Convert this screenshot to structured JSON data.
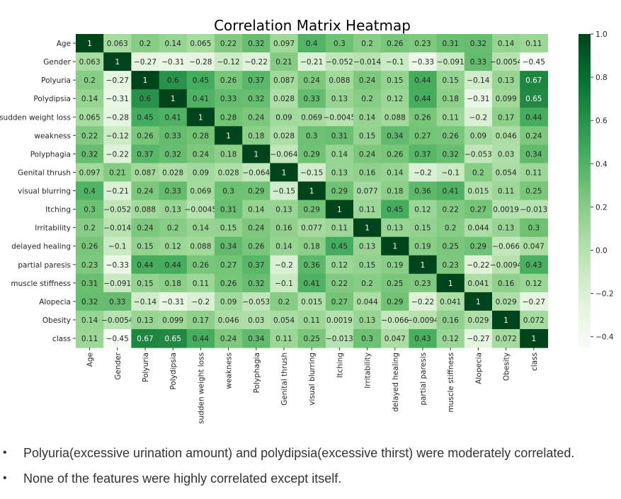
{
  "chart_data": {
    "type": "heatmap",
    "title": "Correlation Matrix Heatmap",
    "colormap": "Greens",
    "vmin": -0.45,
    "vmax": 1.0,
    "colorbar_ticks": [
      1.0,
      0.8,
      0.6,
      0.4,
      0.2,
      0.0,
      -0.2,
      -0.4
    ],
    "colorbar_tick_labels": [
      "1.0",
      "0.8",
      "0.6",
      "0.4",
      "0.2",
      "0.0",
      "−0.2",
      "−0.4"
    ],
    "labels": [
      "Age",
      "Gender",
      "Polyuria",
      "Polydipsia",
      "sudden weight loss",
      "weakness",
      "Polyphagia",
      "Genital thrush",
      "visual blurring",
      "Itching",
      "Irritability",
      "delayed healing",
      "partial paresis",
      "muscle stiffness",
      "Alopecia",
      "Obesity",
      "class"
    ],
    "matrix": [
      [
        "1",
        "0.063",
        "0.2",
        "0.14",
        "0.065",
        "0.22",
        "0.32",
        "0.097",
        "0.4",
        "0.3",
        "0.2",
        "0.26",
        "0.23",
        "0.31",
        "0.32",
        "0.14",
        "0.11"
      ],
      [
        "0.063",
        "1",
        "-0.27",
        "-0.31",
        "-0.28",
        "-0.12",
        "-0.22",
        "0.21",
        "-0.21",
        "-0.052",
        "-0.014",
        "-0.1",
        "-0.33",
        "-0.091",
        "0.33",
        "-0.0054",
        "-0.45"
      ],
      [
        "0.2",
        "-0.27",
        "1",
        "0.6",
        "0.45",
        "0.26",
        "0.37",
        "0.087",
        "0.24",
        "0.088",
        "0.24",
        "0.15",
        "0.44",
        "0.15",
        "-0.14",
        "0.13",
        "0.67"
      ],
      [
        "0.14",
        "-0.31",
        "0.6",
        "1",
        "0.41",
        "0.33",
        "0.32",
        "0.028",
        "0.33",
        "0.13",
        "0.2",
        "0.12",
        "0.44",
        "0.18",
        "-0.31",
        "0.099",
        "0.65"
      ],
      [
        "0.065",
        "-0.28",
        "0.45",
        "0.41",
        "1",
        "0.28",
        "0.24",
        "0.09",
        "0.069",
        "-0.0045",
        "0.14",
        "0.088",
        "0.26",
        "0.11",
        "-0.2",
        "0.17",
        "0.44"
      ],
      [
        "0.22",
        "-0.12",
        "0.26",
        "0.33",
        "0.28",
        "1",
        "0.18",
        "0.028",
        "0.3",
        "0.31",
        "0.15",
        "0.34",
        "0.27",
        "0.26",
        "0.09",
        "0.046",
        "0.24"
      ],
      [
        "0.32",
        "-0.22",
        "0.37",
        "0.32",
        "0.24",
        "0.18",
        "1",
        "-0.064",
        "0.29",
        "0.14",
        "0.24",
        "0.26",
        "0.37",
        "0.32",
        "-0.053",
        "0.03",
        "0.34"
      ],
      [
        "0.097",
        "0.21",
        "0.087",
        "0.028",
        "0.09",
        "0.028",
        "-0.064",
        "1",
        "-0.15",
        "0.13",
        "0.16",
        "0.14",
        "-0.2",
        "-0.1",
        "0.2",
        "0.054",
        "0.11"
      ],
      [
        "0.4",
        "-0.21",
        "0.24",
        "0.33",
        "0.069",
        "0.3",
        "0.29",
        "-0.15",
        "1",
        "0.29",
        "0.077",
        "0.18",
        "0.36",
        "0.41",
        "0.015",
        "0.11",
        "0.25"
      ],
      [
        "0.3",
        "-0.052",
        "0.088",
        "0.13",
        "-0.0045",
        "0.31",
        "0.14",
        "0.13",
        "0.29",
        "1",
        "0.11",
        "0.45",
        "0.12",
        "0.22",
        "0.27",
        "0.0019",
        "-0.013"
      ],
      [
        "0.2",
        "-0.014",
        "0.24",
        "0.2",
        "0.14",
        "0.15",
        "0.24",
        "0.16",
        "0.077",
        "0.11",
        "1",
        "0.13",
        "0.15",
        "0.2",
        "0.044",
        "0.13",
        "0.3"
      ],
      [
        "0.26",
        "-0.1",
        "0.15",
        "0.12",
        "0.088",
        "0.34",
        "0.26",
        "0.14",
        "0.18",
        "0.45",
        "0.13",
        "1",
        "0.19",
        "0.25",
        "0.29",
        "-0.066",
        "0.047"
      ],
      [
        "0.23",
        "-0.33",
        "0.44",
        "0.44",
        "0.26",
        "0.27",
        "0.37",
        "-0.2",
        "0.36",
        "0.12",
        "0.15",
        "0.19",
        "1",
        "0.23",
        "-0.22",
        "-0.0094",
        "0.43"
      ],
      [
        "0.31",
        "-0.091",
        "0.15",
        "0.18",
        "0.11",
        "0.26",
        "0.32",
        "-0.1",
        "0.41",
        "0.22",
        "0.2",
        "0.25",
        "0.23",
        "1",
        "0.041",
        "0.16",
        "0.12"
      ],
      [
        "0.32",
        "0.33",
        "-0.14",
        "-0.31",
        "-0.2",
        "0.09",
        "-0.053",
        "0.2",
        "0.015",
        "0.27",
        "0.044",
        "0.29",
        "-0.22",
        "0.041",
        "1",
        "0.029",
        "-0.27"
      ],
      [
        "0.14",
        "-0.0054",
        "0.13",
        "0.099",
        "0.17",
        "0.046",
        "0.03",
        "0.054",
        "0.11",
        "0.0019",
        "0.13",
        "-0.066",
        "-0.0094",
        "0.16",
        "0.029",
        "1",
        "0.072"
      ],
      [
        "0.11",
        "-0.45",
        "0.67",
        "0.65",
        "0.44",
        "0.24",
        "0.34",
        "0.11",
        "0.25",
        "-0.013",
        "0.3",
        "0.047",
        "0.43",
        "0.12",
        "-0.27",
        "0.072",
        "1"
      ]
    ]
  },
  "notes": [
    "Polyuria(excessive urination amount) and polydipsia(excessive thirst) were moderately correlated.",
    "None of the features were highly correlated except itself."
  ],
  "bullet_glyph": "•"
}
